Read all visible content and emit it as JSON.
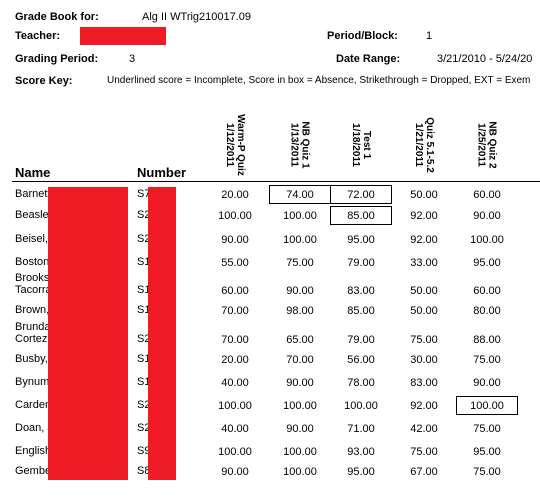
{
  "header": {
    "gradebook_label": "Grade Book for:",
    "gradebook_value": "Alg II WTrig210017.09",
    "teacher_label": "Teacher:",
    "period_block_label": "Period/Block:",
    "period_block_value": "1",
    "grading_period_label": "Grading Period:",
    "grading_period_value": "3",
    "date_range_label": "Date Range:",
    "date_range_value": "3/21/2010 - 5/24/20",
    "score_key_label": "Score Key:",
    "score_key_value": "Underlined score = Incomplete, Score in box = Absence, Strikethrough = Dropped, EXT = Exem"
  },
  "table": {
    "name_header": "Name",
    "number_header": "Number",
    "columns": [
      {
        "title": "Warm-P Quiz",
        "date": "1/12/2011"
      },
      {
        "title": "NB Quiz 1",
        "date": "1/13/2011"
      },
      {
        "title": "Test 1",
        "date": "1/18/2011"
      },
      {
        "title": "Quiz 5.1-5.2",
        "date": "1/21/2011"
      },
      {
        "title": "NB Quiz 2",
        "date": "1/25/2011"
      }
    ],
    "rows": [
      {
        "name": "Barnett",
        "number": "S7",
        "scores": [
          "20.00",
          "74.00",
          "72.00",
          "50.00",
          "60.00"
        ],
        "boxed": [
          1,
          2
        ]
      },
      {
        "name": "Beasley",
        "number": "S2",
        "scores": [
          "100.00",
          "100.00",
          "85.00",
          "92.00",
          "90.00"
        ],
        "boxed": [
          2
        ]
      },
      {
        "name": "Beisel,",
        "number": "S2",
        "scores": [
          "90.00",
          "100.00",
          "95.00",
          "92.00",
          "100.00"
        ],
        "boxed": []
      },
      {
        "name": "Boston",
        "number": "S1",
        "scores": [
          "55.00",
          "75.00",
          "79.00",
          "33.00",
          "95.00"
        ],
        "boxed": []
      },
      {
        "name": "Brooks Tacorra",
        "number": "S1",
        "scores": [
          "60.00",
          "90.00",
          "83.00",
          "50.00",
          "60.00"
        ],
        "boxed": []
      },
      {
        "name": "Brown,",
        "number": "S1",
        "scores": [
          "70.00",
          "98.00",
          "85.00",
          "50.00",
          "80.00"
        ],
        "boxed": []
      },
      {
        "name": "Brunda Cortez",
        "number": "S2",
        "scores": [
          "70.00",
          "65.00",
          "79.00",
          "75.00",
          "88.00"
        ],
        "boxed": []
      },
      {
        "name": "Busby,",
        "number": "S1",
        "scores": [
          "20.00",
          "70.00",
          "56.00",
          "30.00",
          "75.00"
        ],
        "boxed": []
      },
      {
        "name": "Bynum",
        "number": "S1",
        "scores": [
          "40.00",
          "90.00",
          "78.00",
          "83.00",
          "90.00"
        ],
        "boxed": []
      },
      {
        "name": "Carden",
        "number": "S2",
        "scores": [
          "100.00",
          "100.00",
          "100.00",
          "92.00",
          "100.00"
        ],
        "boxed": [
          4
        ]
      },
      {
        "name": "Doan, J",
        "number": "S2",
        "scores": [
          "40.00",
          "90.00",
          "71.00",
          "42.00",
          "75.00"
        ],
        "boxed": []
      },
      {
        "name": "English",
        "number": "S9",
        "scores": [
          "100.00",
          "100.00",
          "93.00",
          "75.00",
          "95.00"
        ],
        "boxed": []
      },
      {
        "name": "Gembe",
        "number": "S8",
        "scores": [
          "90.00",
          "100.00",
          "95.00",
          "67.00",
          "75.00"
        ],
        "boxed": []
      }
    ]
  }
}
